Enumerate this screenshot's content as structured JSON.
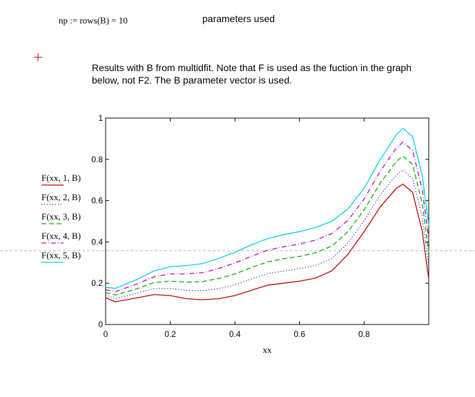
{
  "header": {
    "expression": "np := rows(B) = 10",
    "note": "parameters used"
  },
  "description": [
    "Results with B from multidfit.  Note that F is used as the fuction in the graph",
    "below, not F2.  The B parameter vector is used."
  ],
  "chart_data": {
    "type": "line",
    "x": [
      0,
      0.03,
      0.1,
      0.15,
      0.2,
      0.25,
      0.3,
      0.35,
      0.4,
      0.45,
      0.5,
      0.55,
      0.6,
      0.65,
      0.7,
      0.75,
      0.8,
      0.85,
      0.9,
      0.92,
      0.95,
      0.98,
      1
    ],
    "series": [
      {
        "name": "F(xx, 1, B)",
        "color": "#c00000",
        "line_style": "solid",
        "values": [
          0.13,
          0.11,
          0.13,
          0.145,
          0.14,
          0.125,
          0.12,
          0.125,
          0.14,
          0.165,
          0.19,
          0.2,
          0.21,
          0.225,
          0.26,
          0.34,
          0.45,
          0.57,
          0.66,
          0.68,
          0.64,
          0.45,
          0.22
        ]
      },
      {
        "name": "F(xx, 2, B)",
        "color": "#0000a0",
        "line_style": "dotted",
        "values": [
          0.143,
          0.126,
          0.153,
          0.174,
          0.175,
          0.165,
          0.164,
          0.174,
          0.193,
          0.22,
          0.246,
          0.259,
          0.27,
          0.286,
          0.32,
          0.395,
          0.503,
          0.628,
          0.725,
          0.748,
          0.708,
          0.518,
          0.285
        ]
      },
      {
        "name": "F(xx, 3, B)",
        "color": "#00b000",
        "line_style": "dashed",
        "values": [
          0.155,
          0.143,
          0.175,
          0.203,
          0.21,
          0.205,
          0.208,
          0.223,
          0.245,
          0.275,
          0.303,
          0.318,
          0.33,
          0.348,
          0.38,
          0.45,
          0.555,
          0.685,
          0.79,
          0.815,
          0.775,
          0.585,
          0.35
        ]
      },
      {
        "name": "F(xx, 4, B)",
        "color": "#c000c0",
        "line_style": "dashdot",
        "values": [
          0.168,
          0.159,
          0.198,
          0.231,
          0.245,
          0.245,
          0.251,
          0.271,
          0.298,
          0.33,
          0.359,
          0.376,
          0.39,
          0.409,
          0.44,
          0.505,
          0.608,
          0.743,
          0.855,
          0.883,
          0.843,
          0.653,
          0.415
        ]
      },
      {
        "name": "F(xx, 5, B)",
        "color": "#00d0e0",
        "line_style": "solid",
        "values": [
          0.18,
          0.175,
          0.22,
          0.26,
          0.28,
          0.285,
          0.295,
          0.32,
          0.35,
          0.385,
          0.415,
          0.435,
          0.45,
          0.47,
          0.5,
          0.56,
          0.66,
          0.8,
          0.92,
          0.95,
          0.91,
          0.72,
          0.48
        ]
      }
    ],
    "x_label": "xx",
    "xlim": [
      0,
      1
    ],
    "xticks": [
      0,
      0.2,
      0.4,
      0.6,
      0.8
    ],
    "ylim": [
      0,
      1
    ],
    "yticks": [
      0,
      0.2,
      0.4,
      0.6,
      0.8,
      1
    ],
    "legend": "left"
  }
}
